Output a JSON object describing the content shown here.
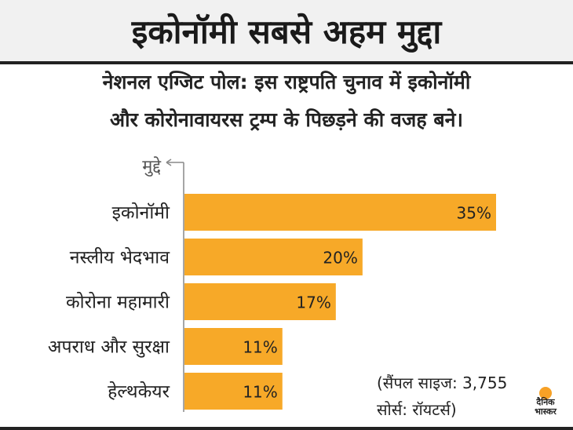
{
  "title": "इकोनॉमी सबसे अहम मुद्दा",
  "subtitle_line1": "नेशनल एग्जिट पोल: इस राष्ट्रपति चुनाव में इकोनॉमी",
  "subtitle_line2": "और कोरोनावायरस ट्रम्प के पिछड़ने की वजह बने।",
  "source": {
    "sample": "(सैंपल साइज: 3,755",
    "by": "सोर्स: रॉयटर्स)"
  },
  "logo_text_1": "दैनिक",
  "logo_text_2": "भास्कर",
  "colors": {
    "bar": "#f7a928",
    "text": "#222222",
    "title_bg": "#f1f1f1"
  },
  "chart_data": {
    "type": "bar",
    "orientation": "horizontal",
    "axis_label": "मुद्दे",
    "categories": [
      "इकोनॉमी",
      "नस्लीय भेदभाव",
      "कोरोना महामारी",
      "अपराध और सुरक्षा",
      "हेल्थकेयर"
    ],
    "values": [
      35,
      20,
      17,
      11,
      11
    ],
    "data_labels": [
      "35%",
      "20%",
      "17%",
      "11%",
      "11%"
    ],
    "xlim": [
      0,
      35
    ],
    "grid": false
  }
}
